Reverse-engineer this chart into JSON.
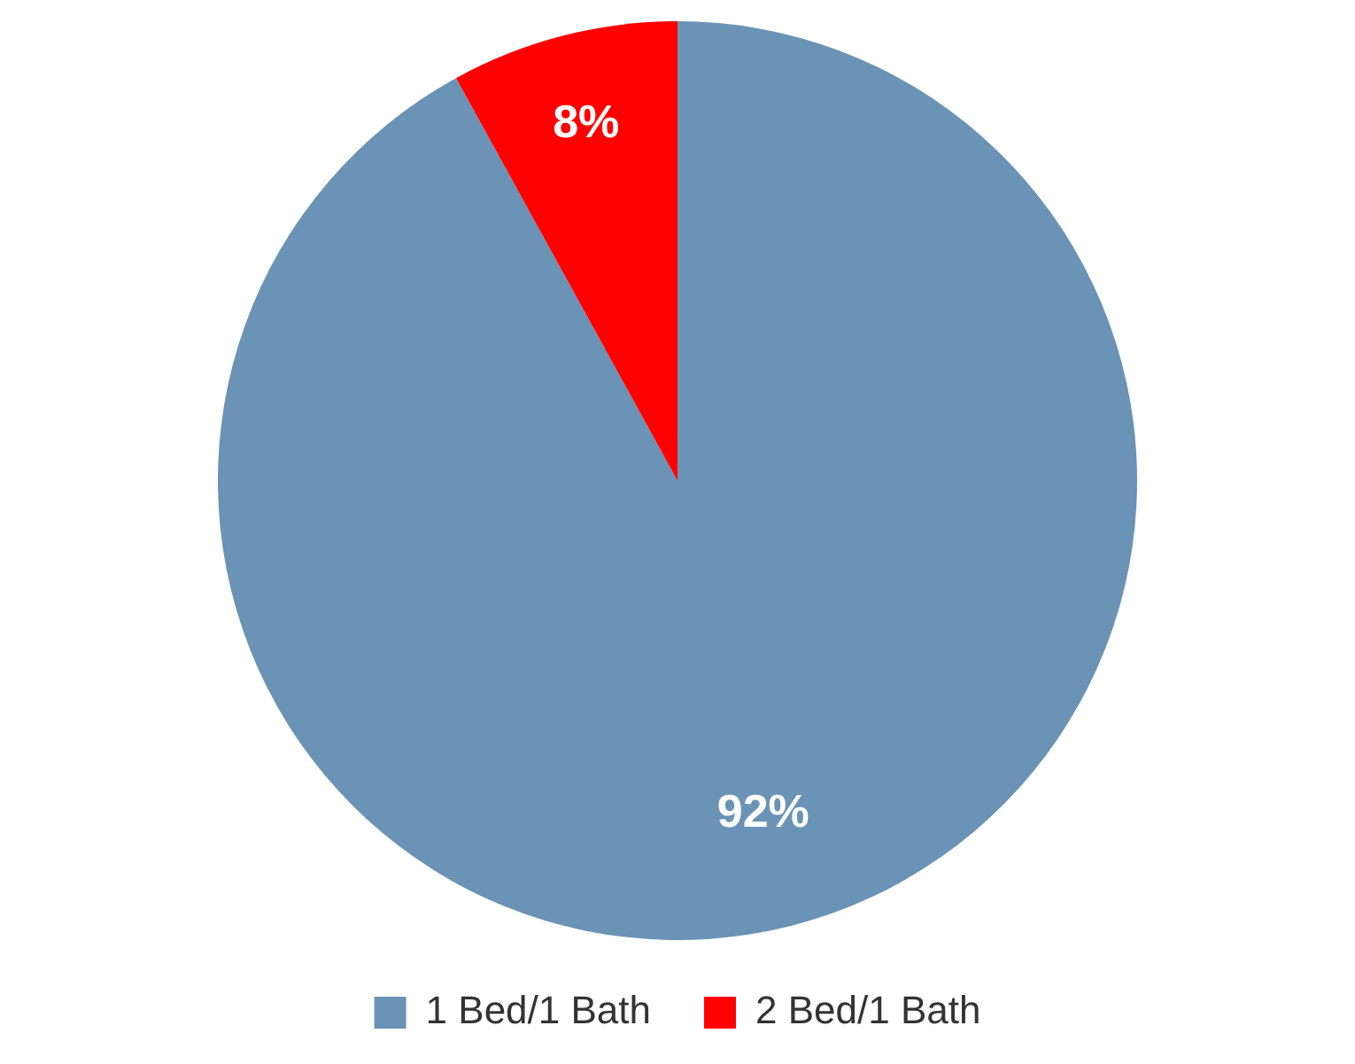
{
  "chart_data": {
    "type": "pie",
    "categories": [
      "1 Bed/1 Bath",
      "2 Bed/1 Bath"
    ],
    "values": [
      92,
      8
    ],
    "colors": [
      "#6a93b5",
      "#ff0000"
    ],
    "value_labels": [
      "92%",
      "8%"
    ],
    "legend": "bottom"
  }
}
